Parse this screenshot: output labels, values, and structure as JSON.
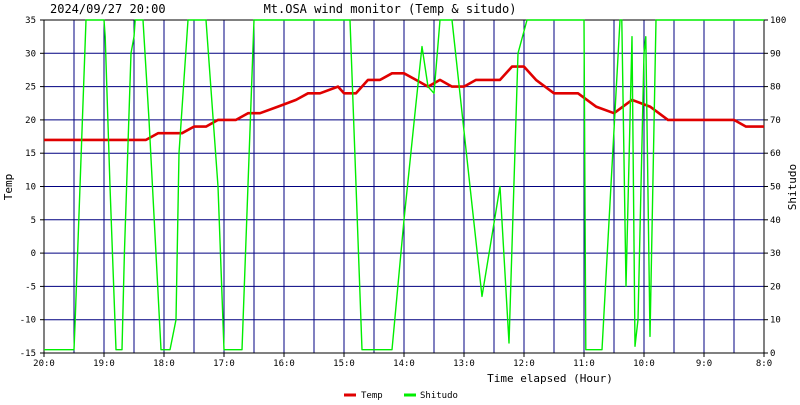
{
  "header": {
    "timestamp": "2024/09/27 20:00",
    "title": "Mt.OSA wind monitor (Temp & situdo)"
  },
  "colors": {
    "background": "#ffffff",
    "plot_background": "#ffffff",
    "grid": "#000080",
    "axis": "#000000",
    "temp": "#e00000",
    "shitudo": "#00ee00",
    "text": "#000000"
  },
  "chart_data": {
    "type": "line",
    "title": "Mt.OSA wind monitor (Temp & situdo)",
    "xlabel": "Time elapsed (Hour)",
    "ylabel_left": "Temp",
    "ylabel_right": "Shitudo",
    "ylim_left": [
      -15,
      35
    ],
    "ylim_right": [
      0,
      100
    ],
    "grid": true,
    "legend_position": "bottom",
    "x_tick_labels": [
      "20:0",
      "19:0",
      "18:0",
      "17:0",
      "16:0",
      "15:0",
      "14:0",
      "13:0",
      "12:0",
      "11:0",
      "10:0",
      "9:0",
      "8:0"
    ],
    "y_ticks_left": [
      "35",
      "30",
      "25",
      "20",
      "15",
      "10",
      "5",
      "0",
      "-5",
      "-10",
      "-15"
    ],
    "y_ticks_right": [
      "100",
      "90",
      "80",
      "70",
      "60",
      "50",
      "40",
      "30",
      "20",
      "10",
      "0"
    ],
    "x_range_hours": [
      0,
      12
    ],
    "series": [
      {
        "name": "Temp",
        "axis": "left",
        "color": "#e00000",
        "x": [
          0,
          1.5,
          1.7,
          1.9,
          2.3,
          2.5,
          2.7,
          2.9,
          3.2,
          3.4,
          3.6,
          3.9,
          4.2,
          4.4,
          4.6,
          4.9,
          5.0,
          5.2,
          5.4,
          5.6,
          5.8,
          6.0,
          6.2,
          6.4,
          6.6,
          6.8,
          7.0,
          7.2,
          7.4,
          7.6,
          7.8,
          8.0,
          8.2,
          8.5,
          8.9,
          9.2,
          9.5,
          9.8,
          10.1,
          10.4,
          10.7,
          11.2,
          11.5,
          11.7,
          12.0
        ],
        "y": [
          17,
          17,
          17,
          18,
          18,
          19,
          19,
          20,
          20,
          21,
          21,
          22,
          23,
          24,
          24,
          25,
          24,
          24,
          26,
          26,
          27,
          27,
          26,
          25,
          26,
          25,
          25,
          26,
          26,
          26,
          28,
          28,
          26,
          24,
          24,
          22,
          21,
          23,
          22,
          20,
          20,
          20,
          20,
          19,
          19
        ]
      },
      {
        "name": "Shitudo",
        "axis": "right",
        "color": "#00ee00",
        "x": [
          0,
          0.5,
          0.52,
          0.7,
          1.0,
          1.02,
          1.1,
          1.2,
          1.3,
          1.34,
          1.45,
          1.5,
          1.52,
          1.65,
          1.75,
          1.95,
          2.1,
          2.2,
          2.25,
          2.4,
          2.7,
          2.9,
          3.0,
          3.3,
          3.5,
          5.1,
          5.3,
          5.8,
          6.0,
          6.2,
          6.3,
          6.4,
          6.5,
          6.6,
          6.8,
          7.1,
          7.3,
          7.6,
          7.75,
          7.9,
          8.05,
          9.0,
          9.03,
          9.3,
          9.6,
          9.63,
          9.7,
          9.8,
          9.85,
          9.9,
          10.0,
          10.03,
          10.1,
          10.2,
          10.25,
          10.4,
          11.0,
          12.0
        ],
        "y": [
          1,
          1,
          10,
          100,
          100,
          95,
          50,
          1,
          1,
          30,
          90,
          95,
          100,
          100,
          70,
          1,
          1,
          10,
          60,
          100,
          100,
          50,
          1,
          1,
          100,
          100,
          1,
          1,
          40,
          75,
          92,
          80,
          78,
          100,
          100,
          50,
          17,
          50,
          3,
          90,
          100,
          100,
          1,
          1,
          100,
          100,
          20,
          95,
          2,
          10,
          90,
          95,
          5,
          100,
          100,
          100,
          100,
          100
        ]
      }
    ]
  }
}
